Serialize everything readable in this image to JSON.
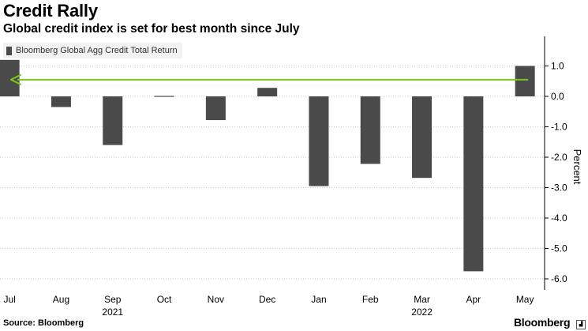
{
  "header": {
    "title": "Credit Rally",
    "subtitle": "Global credit index is set for best month since July"
  },
  "legend": {
    "label": "Bloomberg Global Agg Credit Total Return"
  },
  "footer": {
    "source": "Source: Bloomberg",
    "brand": "Bloomberg"
  },
  "colors": {
    "bar": "#4a4a4a",
    "arrow": "#7cc61f",
    "grid": "#cccccc"
  },
  "chart_data": {
    "type": "bar",
    "title": "Credit Rally",
    "subtitle": "Global credit index is set for best month since July",
    "categories": [
      "Jul",
      "Aug",
      "Sep",
      "Oct",
      "Nov",
      "Dec",
      "Jan",
      "Feb",
      "Mar",
      "Apr",
      "May"
    ],
    "year_labels": [
      {
        "label": "2021",
        "under": "Sep"
      },
      {
        "label": "2022",
        "under": "Mar"
      }
    ],
    "series": [
      {
        "name": "Bloomberg Global Agg Credit Total Return",
        "values": [
          1.2,
          -0.35,
          -1.6,
          0.02,
          -0.78,
          0.28,
          -2.95,
          -2.22,
          -2.68,
          -5.75,
          1.0
        ]
      }
    ],
    "ylabel": "Percent",
    "ylim": [
      -6.2,
      1.8
    ],
    "yticks": [
      1.0,
      0.0,
      -1.0,
      -2.0,
      -3.0,
      -4.0,
      -5.0,
      -6.0
    ],
    "ytick_labels": [
      "1.0",
      "0.0",
      "-1.0",
      "-2.0",
      "-3.0",
      "-4.0",
      "-5.0",
      "-6.0"
    ],
    "y_axis_side": "right",
    "grid": "horizontal dashed",
    "legend_position": "top-left",
    "annotation": {
      "type": "arrow",
      "from": "May",
      "to": "Jul",
      "y": 0.55
    }
  }
}
